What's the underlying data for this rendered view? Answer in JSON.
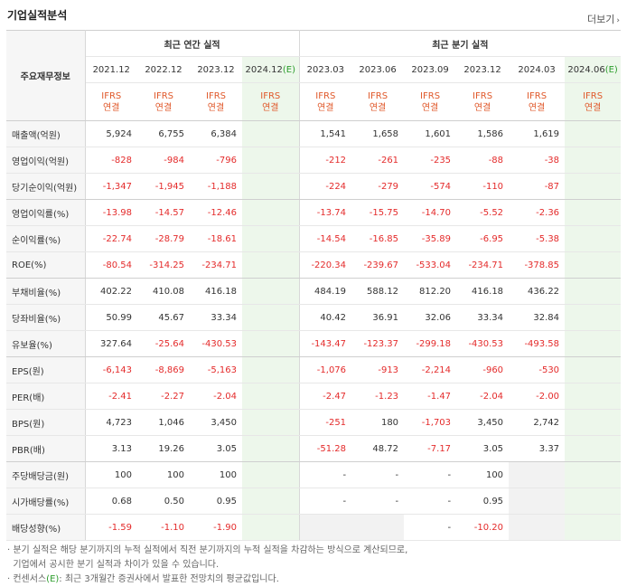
{
  "title": "기업실적분석",
  "more_label": "더보기",
  "corner_label": "주요재무정보",
  "annual_group": "최근 연간 실적",
  "quarter_group": "최근 분기 실적",
  "annual_periods": [
    "2021.12",
    "2022.12",
    "2023.12",
    "2024.12"
  ],
  "annual_est_suffix": "(E)",
  "quarter_periods": [
    "2023.03",
    "2023.06",
    "2023.09",
    "2023.12",
    "2024.03",
    "2024.06"
  ],
  "quarter_est_suffix": "(E)",
  "ifrs_line1": "IFRS",
  "ifrs_line2": "연결",
  "rows": [
    {
      "label": "매출액(억원)",
      "values": [
        "5,924",
        "6,755",
        "6,384",
        "",
        "1,541",
        "1,658",
        "1,601",
        "1,586",
        "1,619",
        ""
      ]
    },
    {
      "label": "영업이익(억원)",
      "values": [
        "-828",
        "-984",
        "-796",
        "",
        "-212",
        "-261",
        "-235",
        "-88",
        "-38",
        ""
      ]
    },
    {
      "label": "당기순이익(억원)",
      "values": [
        "-1,347",
        "-1,945",
        "-1,188",
        "",
        "-224",
        "-279",
        "-574",
        "-110",
        "-87",
        ""
      ]
    },
    {
      "label": "영업이익률(%)",
      "values": [
        "-13.98",
        "-14.57",
        "-12.46",
        "",
        "-13.74",
        "-15.75",
        "-14.70",
        "-5.52",
        "-2.36",
        ""
      ]
    },
    {
      "label": "순이익률(%)",
      "values": [
        "-22.74",
        "-28.79",
        "-18.61",
        "",
        "-14.54",
        "-16.85",
        "-35.89",
        "-6.95",
        "-5.38",
        ""
      ]
    },
    {
      "label": "ROE(%)",
      "values": [
        "-80.54",
        "-314.25",
        "-234.71",
        "",
        "-220.34",
        "-239.67",
        "-533.04",
        "-234.71",
        "-378.85",
        ""
      ]
    },
    {
      "label": "부채비율(%)",
      "values": [
        "402.22",
        "410.08",
        "416.18",
        "",
        "484.19",
        "588.12",
        "812.20",
        "416.18",
        "436.22",
        ""
      ]
    },
    {
      "label": "당좌비율(%)",
      "values": [
        "50.99",
        "45.67",
        "33.34",
        "",
        "40.42",
        "36.91",
        "32.06",
        "33.34",
        "32.84",
        ""
      ]
    },
    {
      "label": "유보율(%)",
      "values": [
        "327.64",
        "-25.64",
        "-430.53",
        "",
        "-143.47",
        "-123.37",
        "-299.18",
        "-430.53",
        "-493.58",
        ""
      ]
    },
    {
      "label": "EPS(원)",
      "values": [
        "-6,143",
        "-8,869",
        "-5,163",
        "",
        "-1,076",
        "-913",
        "-2,214",
        "-960",
        "-530",
        ""
      ]
    },
    {
      "label": "PER(배)",
      "values": [
        "-2.41",
        "-2.27",
        "-2.04",
        "",
        "-2.47",
        "-1.23",
        "-1.47",
        "-2.04",
        "-2.00",
        ""
      ]
    },
    {
      "label": "BPS(원)",
      "values": [
        "4,723",
        "1,046",
        "3,450",
        "",
        "-251",
        "180",
        "-1,703",
        "3,450",
        "2,742",
        ""
      ]
    },
    {
      "label": "PBR(배)",
      "values": [
        "3.13",
        "19.26",
        "3.05",
        "",
        "-51.28",
        "48.72",
        "-7.17",
        "3.05",
        "3.37",
        ""
      ]
    },
    {
      "label": "주당배당금(원)",
      "values": [
        "100",
        "100",
        "100",
        "",
        "-",
        "-",
        "-",
        "100",
        "",
        ""
      ]
    },
    {
      "label": "시가배당률(%)",
      "values": [
        "0.68",
        "0.50",
        "0.95",
        "",
        "-",
        "-",
        "-",
        "0.95",
        "",
        ""
      ]
    },
    {
      "label": "배당성향(%)",
      "values": [
        "-1.59",
        "-1.10",
        "-1.90",
        "",
        "",
        "",
        "-",
        "-10.20",
        "",
        ""
      ]
    }
  ],
  "notes": [
    "분기 실적은 해당 분기까지의 누적 실적에서 직전 분기까지의 누적 실적을 차감하는 방식으로 계산되므로,",
    "기업에서 공시한 분기 실적과 차이가 있을 수 있습니다.",
    "컨센서스",
    "(E)",
    ": 최근 3개월간 증권사에서 발표한 전망치의 평균값입니다."
  ]
}
